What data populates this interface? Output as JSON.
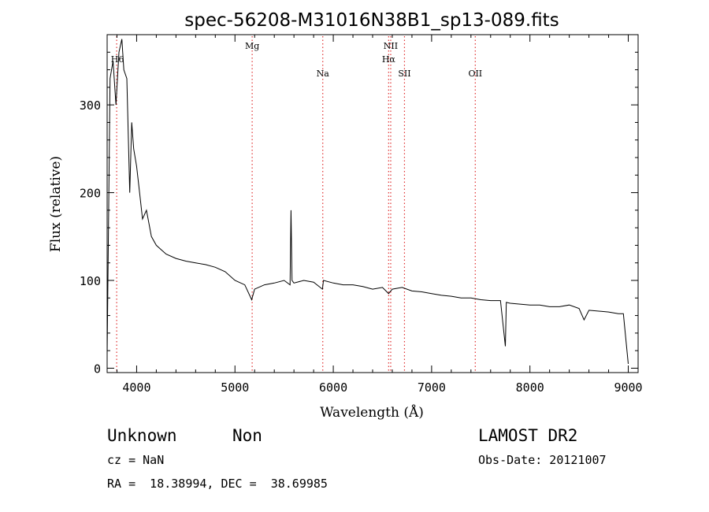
{
  "chart_data": {
    "type": "line",
    "title": "spec-56208-M31016N38B1_sp13-089.fits",
    "xlabel": "Wavelength (Å)",
    "ylabel": "Flux (relative)",
    "xlim": [
      3700,
      9100
    ],
    "ylim": [
      -5,
      380
    ],
    "xticks": [
      4000,
      5000,
      6000,
      7000,
      8000,
      9000
    ],
    "xtick_labels": [
      "4000",
      "5000",
      "6000",
      "7000",
      "8000",
      "9000"
    ],
    "yticks": [
      0,
      100,
      200,
      300
    ],
    "ytick_labels": [
      "0",
      "100",
      "200",
      "300"
    ],
    "grid": false,
    "line_color": "#000000",
    "series": [
      {
        "x": [
          3700,
          3730,
          3760,
          3790,
          3820,
          3850,
          3870,
          3900,
          3930,
          3950,
          3970,
          4000,
          4030,
          4060,
          4100,
          4150,
          4200,
          4250,
          4300,
          4400,
          4500,
          4600,
          4700,
          4800,
          4900,
          5000,
          5100,
          5170,
          5200,
          5300,
          5400,
          5500,
          5560,
          5570,
          5580,
          5600,
          5700,
          5800,
          5890,
          5900,
          6000,
          6100,
          6200,
          6300,
          6400,
          6500,
          6563,
          6600,
          6700,
          6800,
          6900,
          7000,
          7100,
          7200,
          7300,
          7400,
          7500,
          7600,
          7700,
          7750,
          7760,
          7800,
          7900,
          8000,
          8100,
          8200,
          8300,
          8400,
          8500,
          8550,
          8600,
          8700,
          8800,
          8900,
          8950,
          9000
        ],
        "y": [
          15,
          330,
          350,
          300,
          360,
          375,
          340,
          330,
          200,
          280,
          250,
          230,
          200,
          170,
          180,
          150,
          140,
          135,
          130,
          125,
          122,
          120,
          118,
          115,
          110,
          100,
          95,
          78,
          90,
          95,
          97,
          100,
          95,
          180,
          100,
          97,
          100,
          98,
          90,
          100,
          97,
          95,
          95,
          93,
          90,
          92,
          85,
          90,
          92,
          88,
          87,
          85,
          83,
          82,
          80,
          80,
          78,
          77,
          77,
          25,
          75,
          74,
          73,
          72,
          72,
          70,
          70,
          72,
          68,
          55,
          66,
          65,
          64,
          62,
          62,
          5
        ]
      }
    ],
    "lines": [
      {
        "wavelength": 3797,
        "label": "H6"
      },
      {
        "wavelength": 5175,
        "label": "Mg"
      },
      {
        "wavelength": 5893,
        "label": "Na"
      },
      {
        "wavelength": 6563,
        "label": "Hα"
      },
      {
        "wavelength": 6584,
        "label": "NII"
      },
      {
        "wavelength": 6724,
        "label": "SII"
      },
      {
        "wavelength": 7444,
        "label": "OII"
      }
    ],
    "line_marker_color": "#e03030"
  },
  "info": {
    "class": "Unknown",
    "subclass": "Non",
    "survey": "LAMOST DR2",
    "cz": "cz = NaN",
    "obs_date": "Obs-Date: 20121007",
    "coords": "RA =  18.38994, DEC =  38.69985"
  }
}
